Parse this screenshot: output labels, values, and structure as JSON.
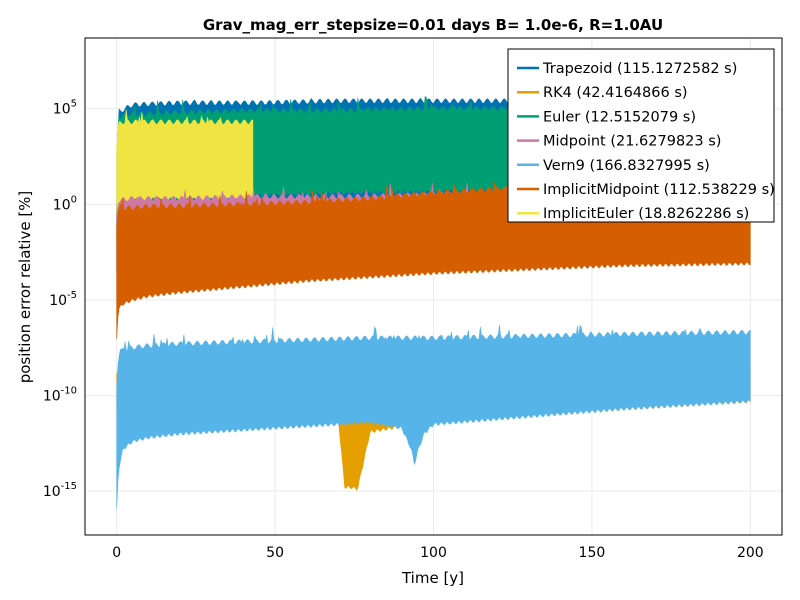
{
  "chart_data": {
    "type": "area",
    "title": "Grav_mag_err_stepsize=0.01 days B= 1.0e-6, R=1.0AU",
    "xlabel": "Time [y]",
    "ylabel": "position error relative [%]",
    "xlim": [
      -10,
      210
    ],
    "ylim_log10": [
      -17.3,
      8.7
    ],
    "yscale": "log",
    "grid": true,
    "legend_position": "top-right",
    "x_ticks": [
      {
        "value": 0,
        "label": "0"
      },
      {
        "value": 50,
        "label": "50"
      },
      {
        "value": 100,
        "label": "100"
      },
      {
        "value": 150,
        "label": "150"
      },
      {
        "value": 200,
        "label": "200"
      }
    ],
    "y_ticks": [
      {
        "log": 5,
        "base": "10",
        "exp": "5"
      },
      {
        "log": 0,
        "base": "10",
        "exp": "0"
      },
      {
        "log": -5,
        "base": "10",
        "exp": "-5"
      },
      {
        "log": -10,
        "base": "10",
        "exp": "-10"
      },
      {
        "log": -15,
        "base": "10",
        "exp": "-15"
      }
    ],
    "series": [
      {
        "name": "Trapezoid (115.1272582 s)",
        "color": "#0072b2",
        "x": [
          0,
          0.5,
          5,
          20,
          44,
          70,
          100,
          150,
          200
        ],
        "lower_log10": [
          -3.5,
          -0.5,
          -0.2,
          -0.1,
          0,
          0,
          0,
          0,
          0
        ],
        "upper_log10": [
          0,
          4.8,
          5.2,
          5.3,
          5.3,
          5.4,
          5.4,
          5.4,
          5.4
        ]
      },
      {
        "name": "RK4 (42.4164866 s)",
        "color": "#e69f00",
        "x": [
          0,
          1,
          5,
          20,
          50,
          70,
          72,
          74,
          76,
          80,
          100,
          150,
          200
        ],
        "lower_log10": [
          -11,
          -11,
          -11.5,
          -11.6,
          -11.4,
          -11.3,
          -14.8,
          -14.8,
          -14.9,
          -11.9,
          -11.3,
          -10.8,
          -10.3
        ],
        "upper_log10": [
          -9,
          -8.5,
          -8.5,
          -8.4,
          -8.4,
          -8.4,
          -8.4,
          -8.4,
          -8.4,
          -8.4,
          -8.4,
          -8.4,
          -8.4
        ]
      },
      {
        "name": "Euler (12.5152079 s)",
        "color": "#009e73",
        "x": [
          0,
          0.5,
          5,
          20,
          44,
          70,
          100,
          150,
          200
        ],
        "lower_log10": [
          -2,
          0,
          0.2,
          0.3,
          0.5,
          0.6,
          0.7,
          0.8,
          1.0
        ],
        "upper_log10": [
          2,
          4.6,
          4.7,
          4.8,
          4.9,
          4.9,
          5.0,
          5.0,
          5.0
        ]
      },
      {
        "name": "Midpoint (21.6279823 s)",
        "color": "#cc79a7",
        "x": [
          0,
          0.5,
          5,
          20,
          44,
          70,
          100,
          150,
          200
        ],
        "lower_log10": [
          -5,
          -1.5,
          -1.1,
          -1.0,
          -0.8,
          -0.8,
          -0.7,
          -0.6,
          -0.5
        ],
        "upper_log10": [
          -0.5,
          0.2,
          0.3,
          0.3,
          0.4,
          0.4,
          0.5,
          0.6,
          0.7
        ]
      },
      {
        "name": "Vern9 (166.8327995 s)",
        "color": "#56b4e9",
        "x": [
          0,
          0.5,
          1,
          2,
          5,
          10,
          20,
          40,
          60,
          80,
          90,
          93,
          94,
          95,
          97,
          100,
          130,
          160,
          200
        ],
        "lower_log10": [
          -16,
          -14,
          -13.5,
          -12.8,
          -12.4,
          -12.2,
          -12.0,
          -11.8,
          -11.6,
          -11.4,
          -11.7,
          -12.8,
          -13.6,
          -12.9,
          -12.0,
          -11.5,
          -11.1,
          -10.7,
          -10.3
        ],
        "upper_log10": [
          -9.5,
          -8,
          -7.8,
          -7.6,
          -7.5,
          -7.4,
          -7.3,
          -7.2,
          -7.1,
          -7.0,
          -7.0,
          -7.0,
          -7.0,
          -7.0,
          -7.0,
          -7.0,
          -6.9,
          -6.8,
          -6.7
        ]
      },
      {
        "name": "ImplicitMidpoint (112.538229 s)",
        "color": "#d55e00",
        "x": [
          0,
          0.5,
          2,
          5,
          10,
          20,
          40,
          60,
          80,
          100,
          130,
          160,
          200
        ],
        "lower_log10": [
          -7,
          -5.5,
          -5.2,
          -5.0,
          -4.8,
          -4.6,
          -4.3,
          -4.0,
          -3.8,
          -3.6,
          -3.4,
          -3.2,
          -3.1
        ],
        "upper_log10": [
          -1,
          -0.3,
          -0.2,
          -0.2,
          -0.1,
          -0.1,
          0,
          0.1,
          0.3,
          0.6,
          0.9,
          1.2,
          1.5
        ]
      },
      {
        "name": "ImplicitEuler (18.8262286 s)",
        "color": "#f0e442",
        "x": [
          0,
          0.5,
          2,
          10,
          20,
          30,
          43
        ],
        "lower_log10": [
          -2,
          0,
          0.2,
          0.3,
          0.3,
          0.3,
          0.3
        ],
        "upper_log10": [
          3,
          4.2,
          4.3,
          4.3,
          4.3,
          4.3,
          4.3
        ]
      }
    ]
  }
}
